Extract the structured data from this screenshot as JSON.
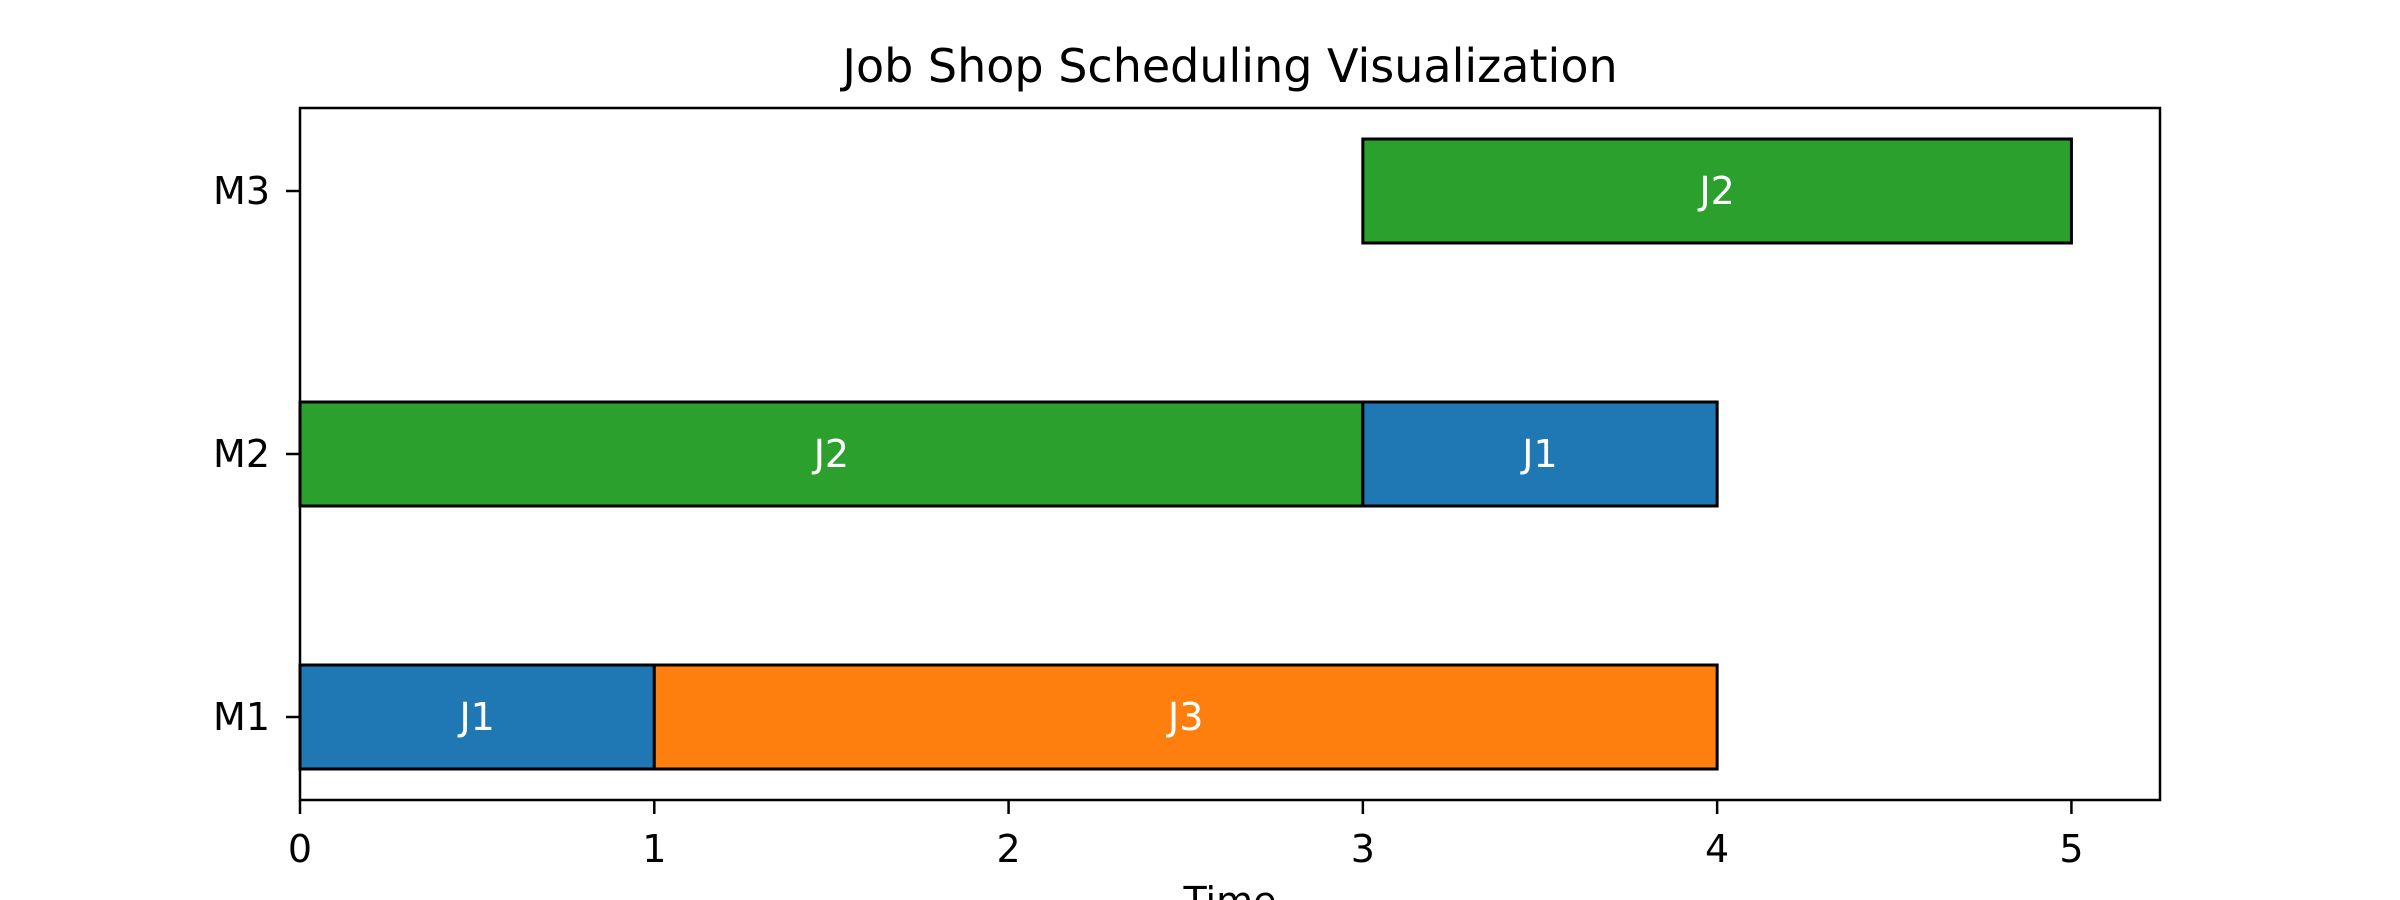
{
  "chart_data": {
    "type": "gantt",
    "title": "Job Shop Scheduling Visualization",
    "xlabel": "Time",
    "ylabel": "",
    "xlim": [
      0,
      5.25
    ],
    "xticks": [
      0,
      1,
      2,
      3,
      4,
      5
    ],
    "machines": [
      "M1",
      "M2",
      "M3"
    ],
    "tasks": [
      {
        "machine": "M1",
        "job": "J1",
        "start": 0,
        "end": 1
      },
      {
        "machine": "M1",
        "job": "J3",
        "start": 1,
        "end": 4
      },
      {
        "machine": "M2",
        "job": "J2",
        "start": 0,
        "end": 3
      },
      {
        "machine": "M2",
        "job": "J1",
        "start": 3,
        "end": 4
      },
      {
        "machine": "M3",
        "job": "J2",
        "start": 3,
        "end": 5
      }
    ],
    "job_colors": {
      "J1": "#1f77b4",
      "J2": "#2ca02c",
      "J3": "#ff7f0e"
    },
    "grid": false,
    "legend": "none"
  }
}
